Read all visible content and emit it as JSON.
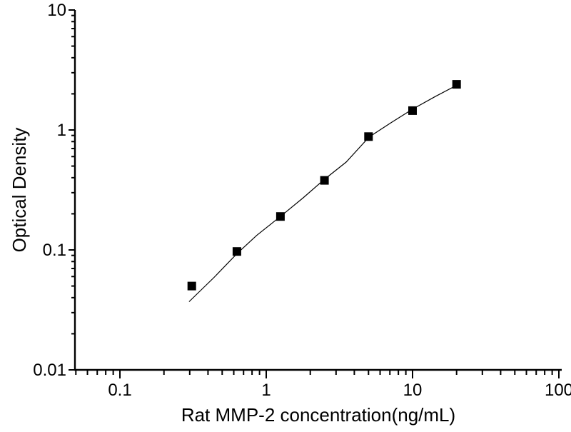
{
  "chart_data": {
    "type": "scatter",
    "title": "",
    "xlabel": "Rat MMP-2 concentration(ng/mL)",
    "ylabel": "Optical Density",
    "x_scale": "log",
    "y_scale": "log",
    "xlim": [
      0.05,
      105
    ],
    "ylim": [
      0.01,
      10
    ],
    "x_ticks": [
      0.1,
      1,
      10,
      100
    ],
    "x_tick_labels": [
      "0.1",
      "1",
      "10",
      "100"
    ],
    "y_ticks": [
      0.01,
      0.1,
      1,
      10
    ],
    "y_tick_labels": [
      "0.01",
      "0.1",
      "1",
      "10"
    ],
    "grid": false,
    "legend": null,
    "marker": "square",
    "marker_color": "#000000",
    "line_color": "#000000",
    "background_color": "#ffffff",
    "points": [
      {
        "x": 0.31,
        "y": 0.05
      },
      {
        "x": 0.63,
        "y": 0.097
      },
      {
        "x": 1.25,
        "y": 0.19
      },
      {
        "x": 2.5,
        "y": 0.38
      },
      {
        "x": 5.0,
        "y": 0.88
      },
      {
        "x": 10.0,
        "y": 1.45
      },
      {
        "x": 20.0,
        "y": 2.4
      }
    ],
    "fit_curve": [
      {
        "x": 0.297,
        "y": 0.037
      },
      {
        "x": 0.44,
        "y": 0.059
      },
      {
        "x": 0.63,
        "y": 0.093
      },
      {
        "x": 0.86,
        "y": 0.132
      },
      {
        "x": 1.25,
        "y": 0.19
      },
      {
        "x": 1.79,
        "y": 0.272
      },
      {
        "x": 2.47,
        "y": 0.383
      },
      {
        "x": 3.52,
        "y": 0.54
      },
      {
        "x": 5.04,
        "y": 0.872
      },
      {
        "x": 7.14,
        "y": 1.15
      },
      {
        "x": 10.0,
        "y": 1.49
      },
      {
        "x": 14.3,
        "y": 1.9
      },
      {
        "x": 20.2,
        "y": 2.37
      }
    ]
  }
}
